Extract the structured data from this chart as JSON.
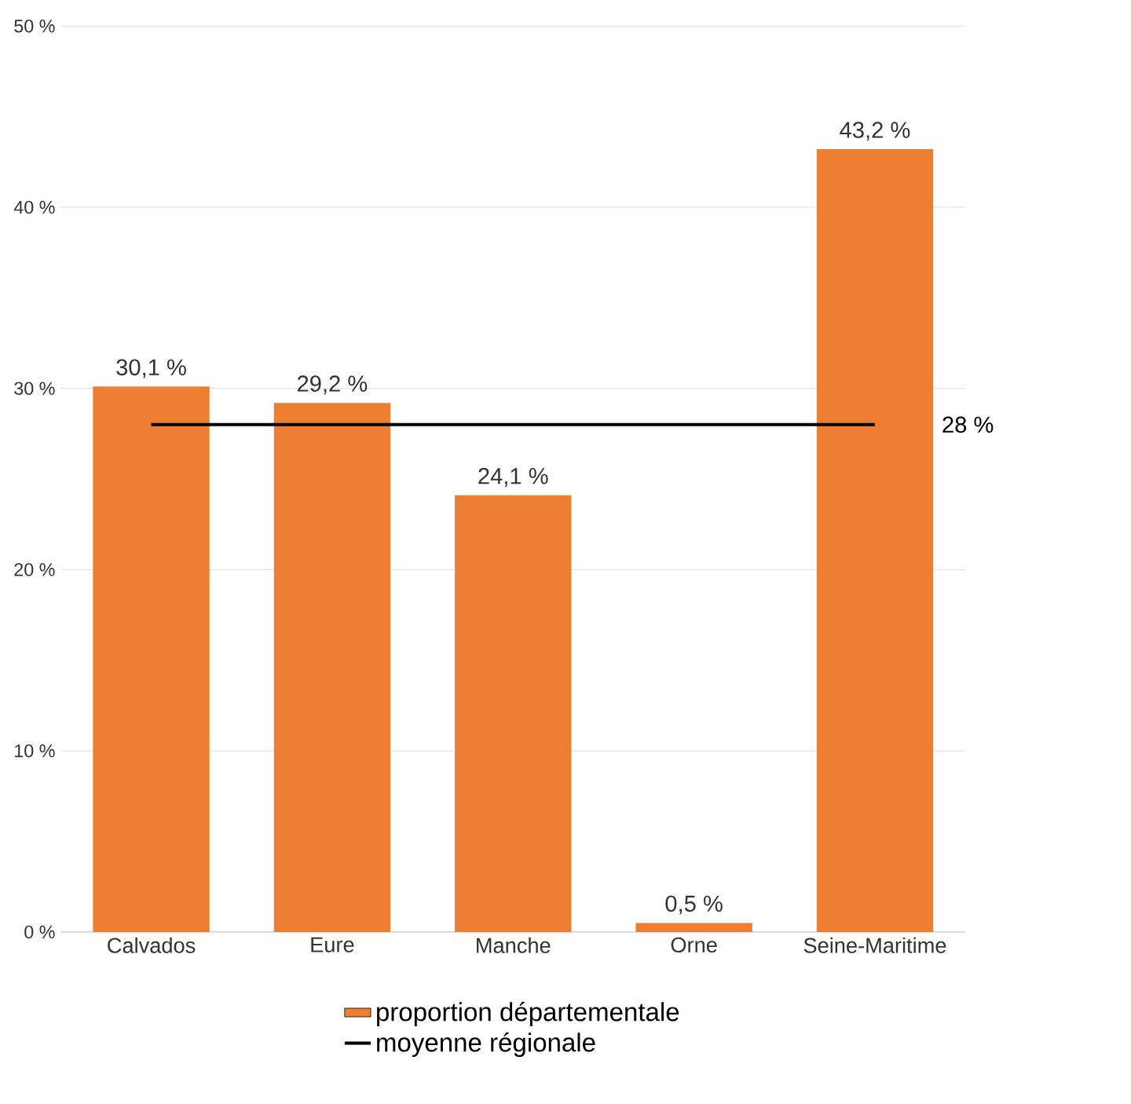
{
  "chart_data": {
    "type": "bar",
    "categories": [
      "Calvados",
      "Eure",
      "Manche",
      "Orne",
      "Seine-Maritime"
    ],
    "series": [
      {
        "name": "proportion départementale",
        "color": "#ed7d31",
        "values": [
          30.1,
          29.2,
          24.1,
          0.5,
          43.2
        ],
        "value_labels": [
          "30,1 %",
          "29,2 %",
          "24,1 %",
          "0,5 %",
          "43,2 %"
        ]
      },
      {
        "name": "moyenne régionale",
        "type": "line",
        "color": "#000000",
        "values": [
          28,
          28,
          28,
          28,
          28
        ]
      }
    ],
    "annotations": [
      {
        "text": "28 %",
        "x": "Seine-Maritime",
        "y": 28
      }
    ],
    "ylim": [
      0,
      50
    ],
    "yticks": [
      {
        "value": 0,
        "label": "0 %"
      },
      {
        "value": 10,
        "label": "10 %"
      },
      {
        "value": 20,
        "label": "20 %"
      },
      {
        "value": 30,
        "label": "30 %"
      },
      {
        "value": 40,
        "label": "40 %"
      },
      {
        "value": 50,
        "label": "50 %"
      }
    ],
    "grid": "y",
    "legend": "bottom"
  }
}
